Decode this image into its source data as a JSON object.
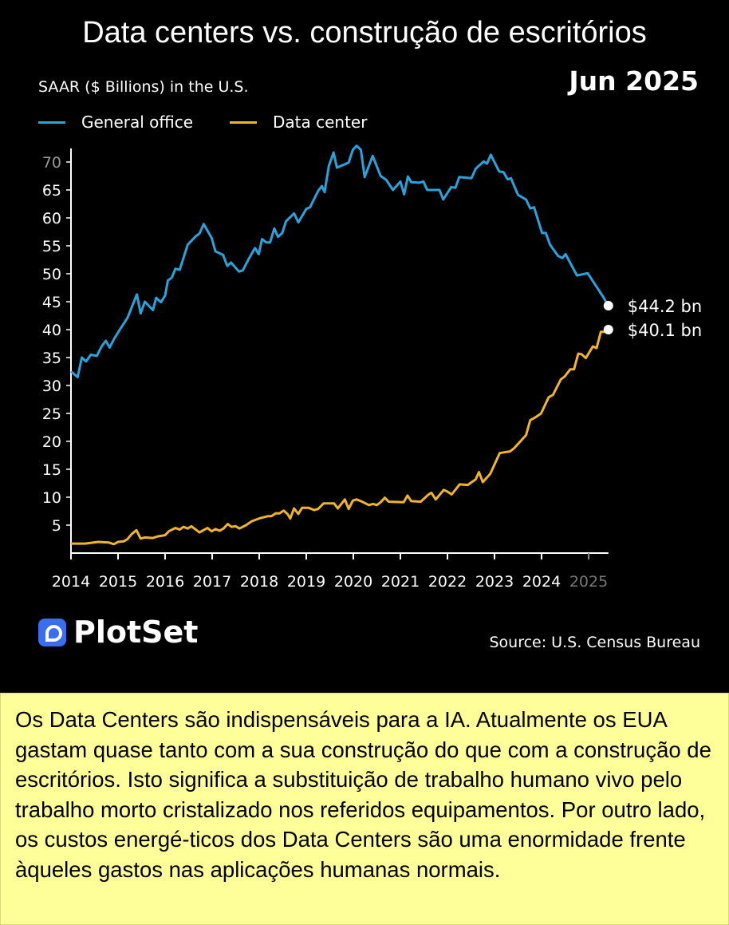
{
  "header": {
    "title": "Data centers vs. construção de escritórios",
    "date": "Jun 2025",
    "subtitle": "SAAR ($ Billions) in the U.S."
  },
  "footer": {
    "brand": "PlotSet",
    "source": "Source: U.S. Census Bureau"
  },
  "note": "Os Data Centers são indispensáveis para a IA.  Atualmente os EUA gastam quase tanto com a sua construção do que com a construção de escritórios.  Isto significa a substituição de trabalho humano vivo pelo trabalho morto cristalizado nos referidos equipamentos.  Por outro lado, os custos energé-ticos dos Data Centers são uma enormidade frente àqueles gastos nas aplicações humanas normais.",
  "chart_data": {
    "type": "line",
    "title": "Data centers vs. construção de escritórios",
    "ylabel": "SAAR ($ Billions) in the U.S.",
    "xlim": [
      2014,
      2025.42
    ],
    "ylim": [
      0,
      72
    ],
    "x_ticks": [
      "2014",
      "2015",
      "2016",
      "2017",
      "2018",
      "2019",
      "2020",
      "2021",
      "2022",
      "2023",
      "2024",
      "2025"
    ],
    "y_ticks": [
      5,
      10,
      15,
      20,
      25,
      30,
      35,
      40,
      45,
      50,
      55,
      60,
      65,
      70
    ],
    "grid": false,
    "legend_placement": "top-left",
    "series": [
      {
        "name": "General office",
        "color": "#29a3dc",
        "end_label": "$44.2 bn",
        "points": [
          [
            2014.0,
            32.5
          ],
          [
            2014.14,
            31.5
          ],
          [
            2014.23,
            35
          ],
          [
            2014.32,
            34.3
          ],
          [
            2014.42,
            35.5
          ],
          [
            2014.55,
            35.3
          ],
          [
            2014.65,
            37
          ],
          [
            2014.74,
            38
          ],
          [
            2014.82,
            36.8
          ],
          [
            2014.92,
            38.4
          ],
          [
            2015.03,
            39.9
          ],
          [
            2015.2,
            42.1
          ],
          [
            2015.4,
            46.3
          ],
          [
            2015.48,
            42.9
          ],
          [
            2015.57,
            45
          ],
          [
            2015.74,
            43.5
          ],
          [
            2015.81,
            45.7
          ],
          [
            2015.91,
            44.9
          ],
          [
            2016.0,
            46.1
          ],
          [
            2016.06,
            48.8
          ],
          [
            2016.14,
            49.3
          ],
          [
            2016.22,
            50.9
          ],
          [
            2016.31,
            50.7
          ],
          [
            2016.48,
            55.2
          ],
          [
            2016.65,
            56.7
          ],
          [
            2016.73,
            57.2
          ],
          [
            2016.82,
            58.9
          ],
          [
            2016.99,
            56.4
          ],
          [
            2017.07,
            54
          ],
          [
            2017.23,
            53.4
          ],
          [
            2017.32,
            51.4
          ],
          [
            2017.4,
            52
          ],
          [
            2017.57,
            50.4
          ],
          [
            2017.65,
            50.6
          ],
          [
            2017.78,
            52.7
          ],
          [
            2017.91,
            54.6
          ],
          [
            2017.99,
            53.5
          ],
          [
            2018.06,
            56.2
          ],
          [
            2018.15,
            55.6
          ],
          [
            2018.23,
            55.6
          ],
          [
            2018.32,
            58.1
          ],
          [
            2018.4,
            56.6
          ],
          [
            2018.49,
            57.3
          ],
          [
            2018.57,
            59.4
          ],
          [
            2018.74,
            60.8
          ],
          [
            2018.83,
            59.2
          ],
          [
            2019.0,
            61.6
          ],
          [
            2019.08,
            61.9
          ],
          [
            2019.25,
            64.8
          ],
          [
            2019.33,
            65.7
          ],
          [
            2019.39,
            64.6
          ],
          [
            2019.48,
            69.3
          ],
          [
            2019.58,
            71.7
          ],
          [
            2019.65,
            69
          ],
          [
            2019.9,
            69.9
          ],
          [
            2019.99,
            72.2
          ],
          [
            2020.07,
            72.9
          ],
          [
            2020.16,
            72.2
          ],
          [
            2020.24,
            67.3
          ],
          [
            2020.41,
            71.1
          ],
          [
            2020.58,
            67.5
          ],
          [
            2020.7,
            66.8
          ],
          [
            2020.84,
            65.0
          ],
          [
            2021.0,
            66.5
          ],
          [
            2021.08,
            64.2
          ],
          [
            2021.16,
            67.4
          ],
          [
            2021.23,
            66.4
          ],
          [
            2021.4,
            66.3
          ],
          [
            2021.49,
            66.5
          ],
          [
            2021.57,
            65.0
          ],
          [
            2021.83,
            65.0
          ],
          [
            2021.91,
            63.3
          ],
          [
            2022.08,
            65.5
          ],
          [
            2022.17,
            65.4
          ],
          [
            2022.25,
            67.3
          ],
          [
            2022.51,
            67.1
          ],
          [
            2022.6,
            68.8
          ],
          [
            2022.77,
            70.1
          ],
          [
            2022.84,
            69.7
          ],
          [
            2022.92,
            71.3
          ],
          [
            2023.1,
            68.3
          ],
          [
            2023.19,
            68.2
          ],
          [
            2023.28,
            66.9
          ],
          [
            2023.35,
            67.1
          ],
          [
            2023.5,
            64.1
          ],
          [
            2023.67,
            63.3
          ],
          [
            2023.76,
            61.7
          ],
          [
            2023.84,
            61.9
          ],
          [
            2024.01,
            57.3
          ],
          [
            2024.09,
            57.3
          ],
          [
            2024.18,
            55.2
          ],
          [
            2024.35,
            53.2
          ],
          [
            2024.44,
            52.8
          ],
          [
            2024.51,
            53.5
          ],
          [
            2024.75,
            49.7
          ],
          [
            2024.98,
            50.1
          ],
          [
            2025.12,
            48.3
          ],
          [
            2025.32,
            45.7
          ],
          [
            2025.42,
            44.2
          ]
        ]
      },
      {
        "name": "Data center",
        "color": "#f0b429",
        "end_label": "$40.1 bn",
        "points": [
          [
            2014.0,
            1.7
          ],
          [
            2014.3,
            1.7
          ],
          [
            2014.58,
            2.0
          ],
          [
            2014.8,
            1.9
          ],
          [
            2014.91,
            1.6
          ],
          [
            2015.0,
            2.0
          ],
          [
            2015.12,
            2.1
          ],
          [
            2015.2,
            2.5
          ],
          [
            2015.29,
            3.4
          ],
          [
            2015.39,
            4.1
          ],
          [
            2015.48,
            2.6
          ],
          [
            2015.57,
            2.8
          ],
          [
            2015.74,
            2.7
          ],
          [
            2015.85,
            3.0
          ],
          [
            2016.0,
            3.2
          ],
          [
            2016.08,
            3.9
          ],
          [
            2016.22,
            4.5
          ],
          [
            2016.31,
            4.2
          ],
          [
            2016.39,
            4.7
          ],
          [
            2016.48,
            4.4
          ],
          [
            2016.56,
            4.8
          ],
          [
            2016.73,
            3.7
          ],
          [
            2016.9,
            4.5
          ],
          [
            2016.99,
            3.9
          ],
          [
            2017.07,
            4.3
          ],
          [
            2017.16,
            4.0
          ],
          [
            2017.24,
            4.4
          ],
          [
            2017.33,
            5.2
          ],
          [
            2017.41,
            4.7
          ],
          [
            2017.5,
            4.8
          ],
          [
            2017.58,
            4.4
          ],
          [
            2017.72,
            5.0
          ],
          [
            2017.84,
            5.7
          ],
          [
            2018.0,
            6.2
          ],
          [
            2018.18,
            6.6
          ],
          [
            2018.26,
            6.6
          ],
          [
            2018.35,
            7.1
          ],
          [
            2018.43,
            7.1
          ],
          [
            2018.52,
            7.6
          ],
          [
            2018.6,
            7.0
          ],
          [
            2018.66,
            6.2
          ],
          [
            2018.74,
            8.0
          ],
          [
            2018.83,
            7.0
          ],
          [
            2018.91,
            8.1
          ],
          [
            2019.05,
            8.1
          ],
          [
            2019.17,
            7.7
          ],
          [
            2019.25,
            7.9
          ],
          [
            2019.37,
            8.9
          ],
          [
            2019.59,
            8.9
          ],
          [
            2019.67,
            8.0
          ],
          [
            2019.82,
            9.6
          ],
          [
            2019.9,
            7.9
          ],
          [
            2019.99,
            9.4
          ],
          [
            2020.07,
            9.6
          ],
          [
            2020.16,
            9.3
          ],
          [
            2020.33,
            8.6
          ],
          [
            2020.42,
            8.8
          ],
          [
            2020.5,
            8.6
          ],
          [
            2020.58,
            9.1
          ],
          [
            2020.67,
            9.9
          ],
          [
            2020.75,
            9.2
          ],
          [
            2021.07,
            9.1
          ],
          [
            2021.15,
            10.3
          ],
          [
            2021.23,
            9.3
          ],
          [
            2021.43,
            9.2
          ],
          [
            2021.6,
            10.5
          ],
          [
            2021.66,
            10.8
          ],
          [
            2021.75,
            9.6
          ],
          [
            2021.92,
            11.3
          ],
          [
            2022.0,
            11.0
          ],
          [
            2022.09,
            10.5
          ],
          [
            2022.26,
            12.3
          ],
          [
            2022.43,
            12.2
          ],
          [
            2022.6,
            13.2
          ],
          [
            2022.67,
            14.5
          ],
          [
            2022.75,
            12.7
          ],
          [
            2022.91,
            14.2
          ],
          [
            2023.11,
            17.9
          ],
          [
            2023.33,
            18.2
          ],
          [
            2023.42,
            18.8
          ],
          [
            2023.67,
            21.1
          ],
          [
            2023.76,
            23.8
          ],
          [
            2023.87,
            24.3
          ],
          [
            2023.99,
            25.0
          ],
          [
            2024.15,
            27.9
          ],
          [
            2024.24,
            28.3
          ],
          [
            2024.41,
            31.1
          ],
          [
            2024.49,
            31.6
          ],
          [
            2024.61,
            32.9
          ],
          [
            2024.69,
            32.9
          ],
          [
            2024.78,
            35.7
          ],
          [
            2024.85,
            35.6
          ],
          [
            2024.94,
            34.9
          ],
          [
            2025.09,
            37.0
          ],
          [
            2025.17,
            36.7
          ],
          [
            2025.26,
            39.6
          ],
          [
            2025.33,
            39.6
          ],
          [
            2025.42,
            40.1
          ]
        ]
      }
    ]
  }
}
